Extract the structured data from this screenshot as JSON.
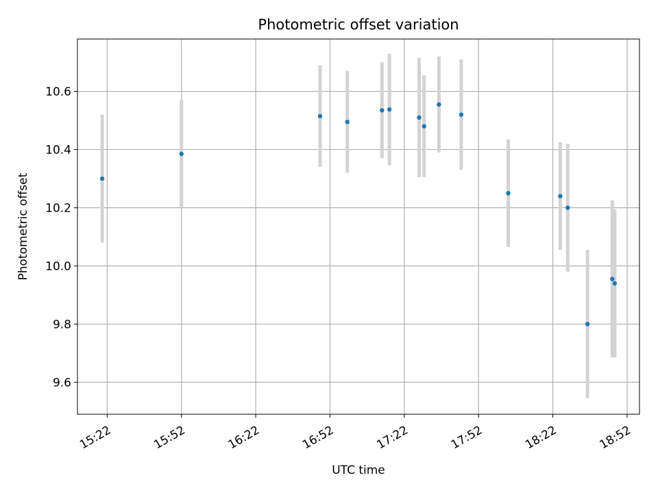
{
  "chart_data": {
    "type": "scatter",
    "title": "Photometric offset variation",
    "xlabel": "UTC time",
    "ylabel": "Photometric offset",
    "x_tick_labels": [
      "15:22",
      "15:52",
      "16:22",
      "16:52",
      "17:22",
      "17:52",
      "18:22",
      "18:52"
    ],
    "y_tick_labels": [
      "9.6",
      "9.8",
      "10.0",
      "10.2",
      "10.4",
      "10.6"
    ],
    "y_ticks": [
      9.6,
      9.8,
      10.0,
      10.2,
      10.4,
      10.6
    ],
    "xlim": [
      "15:10",
      "18:57"
    ],
    "ylim": [
      9.49,
      10.78
    ],
    "grid": true,
    "colors": {
      "points": "#1f77b4",
      "errorbars": "#d3d3d3",
      "grid": "#b0b0b0"
    },
    "points": [
      {
        "x": "15:20",
        "y": 10.3,
        "yerr": 0.22
      },
      {
        "x": "15:52",
        "y": 10.385,
        "yerr": 0.185
      },
      {
        "x": "16:48",
        "y": 10.515,
        "yerr": 0.175
      },
      {
        "x": "16:59",
        "y": 10.495,
        "yerr": 0.175
      },
      {
        "x": "17:13",
        "y": 10.535,
        "yerr": 0.165
      },
      {
        "x": "17:16",
        "y": 10.538,
        "yerr": 0.192
      },
      {
        "x": "17:28",
        "y": 10.51,
        "yerr": 0.205
      },
      {
        "x": "17:30",
        "y": 10.48,
        "yerr": 0.175
      },
      {
        "x": "17:36",
        "y": 10.555,
        "yerr": 0.165
      },
      {
        "x": "17:45",
        "y": 10.52,
        "yerr": 0.19
      },
      {
        "x": "18:04",
        "y": 10.25,
        "yerr": 0.185
      },
      {
        "x": "18:25",
        "y": 10.24,
        "yerr": 0.185
      },
      {
        "x": "18:28",
        "y": 10.2,
        "yerr": 0.22
      },
      {
        "x": "18:36",
        "y": 9.8,
        "yerr": 0.255
      },
      {
        "x": "18:46",
        "y": 9.955,
        "yerr": 0.27
      },
      {
        "x": "18:47",
        "y": 9.94,
        "yerr": 0.255
      }
    ]
  }
}
